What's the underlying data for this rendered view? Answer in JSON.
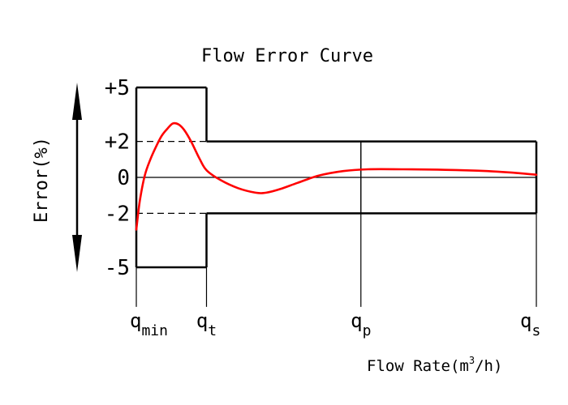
{
  "chart_data": {
    "type": "line",
    "title": "Flow Error Curve",
    "xlabel": {
      "prefix": "Flow Rate(m",
      "sup": "3",
      "suffix": "/h)"
    },
    "ylabel": "Error(%)",
    "y_ticks": [
      {
        "value": 5,
        "label": "+5"
      },
      {
        "value": 2,
        "label": "+2"
      },
      {
        "value": 0,
        "label": "0"
      },
      {
        "value": -2,
        "label": "-2"
      },
      {
        "value": -5,
        "label": "-5"
      }
    ],
    "x_ticks": [
      {
        "key": "qmin",
        "base": "q",
        "sub": "min",
        "x": 0
      },
      {
        "key": "qt",
        "base": "q",
        "sub": "t",
        "x": 1
      },
      {
        "key": "qp",
        "base": "q",
        "sub": "p",
        "x": 3.2
      },
      {
        "key": "qs",
        "base": "q",
        "sub": "s",
        "x": 5.7
      }
    ],
    "limits": [
      {
        "from": 0,
        "to": 1,
        "upper": 5,
        "lower": -5
      },
      {
        "from": 1,
        "to": 5.7,
        "upper": 2,
        "lower": -2
      }
    ],
    "series": [
      {
        "color": "#ff0000",
        "x": [
          0,
          0.05,
          0.12,
          0.2,
          0.28,
          0.36,
          0.44,
          0.52,
          0.6,
          0.68,
          0.78,
          0.9,
          1.0,
          1.2,
          1.45,
          1.7,
          1.85,
          2.05,
          2.3,
          2.6,
          2.95,
          3.3,
          3.8,
          4.4,
          5.0,
          5.4,
          5.7
        ],
        "y": [
          -2.9,
          -1.3,
          0.1,
          1.0,
          1.7,
          2.3,
          2.7,
          3.0,
          2.95,
          2.65,
          2.0,
          1.05,
          0.4,
          -0.15,
          -0.6,
          -0.85,
          -0.85,
          -0.65,
          -0.3,
          0.1,
          0.35,
          0.45,
          0.45,
          0.42,
          0.35,
          0.25,
          0.15
        ]
      }
    ],
    "x_range": [
      0,
      5.7
    ],
    "y_range": [
      -5,
      5
    ],
    "y_bottom": -7.2,
    "grid": false,
    "legend": "none"
  }
}
